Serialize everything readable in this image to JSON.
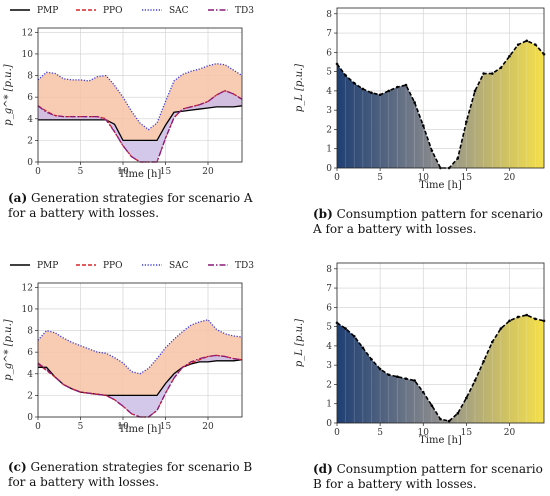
{
  "chart_data": [
    {
      "id": "a",
      "type": "line",
      "x": [
        0,
        1,
        2,
        3,
        4,
        5,
        6,
        7,
        8,
        9,
        10,
        11,
        12,
        13,
        14,
        15,
        16,
        17,
        18,
        19,
        20,
        21,
        22,
        23,
        24
      ],
      "xticks": [
        0,
        5,
        10,
        15,
        20
      ],
      "yticks": [
        0,
        2,
        4,
        6,
        8,
        10,
        12
      ],
      "xlim": [
        0,
        24
      ],
      "ylim": [
        0,
        12.4
      ],
      "xlabel": "Time [h]",
      "ylabel": "p_g^* [p.u.]",
      "legend": [
        "PMP",
        "PPO",
        "SAC",
        "TD3"
      ],
      "series": [
        {
          "name": "PMP",
          "color": "#000000",
          "dash": "solid",
          "values": [
            3.9,
            3.9,
            3.9,
            3.9,
            3.9,
            3.9,
            3.9,
            3.9,
            3.9,
            3.5,
            2.0,
            2.0,
            2.0,
            2.0,
            2.0,
            3.4,
            4.6,
            4.7,
            4.8,
            4.9,
            5.0,
            5.1,
            5.1,
            5.1,
            5.2
          ]
        },
        {
          "name": "PPO",
          "color": "#d62728",
          "dash": "dashed",
          "values": [
            5.2,
            4.7,
            4.3,
            4.2,
            4.2,
            4.2,
            4.2,
            4.2,
            4.0,
            2.8,
            1.5,
            0.5,
            0,
            0,
            0,
            2.2,
            4.1,
            4.9,
            5.1,
            5.3,
            5.6,
            6.2,
            6.6,
            6.3,
            5.8
          ]
        },
        {
          "name": "SAC",
          "color": "#3b3bd6",
          "dash": "dotted",
          "values": [
            7.6,
            8.3,
            8.2,
            7.7,
            7.6,
            7.6,
            7.5,
            7.9,
            8.0,
            7.1,
            6.0,
            4.7,
            3.6,
            3.0,
            3.6,
            5.6,
            7.5,
            8.1,
            8.4,
            8.6,
            8.9,
            9.1,
            9.0,
            8.5,
            8.0
          ]
        },
        {
          "name": "TD3",
          "color": "#8a1a7a",
          "dash": "dashdot",
          "values": [
            5.2,
            4.6,
            4.3,
            4.2,
            4.2,
            4.2,
            4.2,
            4.2,
            3.9,
            2.8,
            1.5,
            0.5,
            0,
            0,
            0,
            2.2,
            4.1,
            4.9,
            5.1,
            5.3,
            5.6,
            6.2,
            6.6,
            6.3,
            5.8
          ]
        }
      ],
      "caption_tag": "(a)",
      "caption_text": "Generation strategies for scenario A for a battery with losses."
    },
    {
      "id": "b",
      "type": "area",
      "x": [
        0,
        1,
        2,
        3,
        4,
        5,
        6,
        7,
        8,
        9,
        10,
        11,
        12,
        13,
        14,
        15,
        16,
        17,
        18,
        19,
        20,
        21,
        22,
        23,
        24
      ],
      "xticks": [
        0,
        5,
        10,
        15,
        20
      ],
      "yticks": [
        0,
        1,
        2,
        3,
        4,
        5,
        6,
        7,
        8
      ],
      "xlim": [
        0,
        24
      ],
      "ylim": [
        0,
        8.3
      ],
      "xlabel": "Time [h]",
      "ylabel": "p_L [p.u.]",
      "gradient": [
        "#1f3f73",
        "#8f8f8f",
        "#f5e04a"
      ],
      "series": [
        {
          "name": "",
          "color": "#000000",
          "dash": "dashed",
          "values": [
            5.4,
            4.8,
            4.4,
            4.1,
            3.9,
            3.8,
            4.0,
            4.2,
            4.3,
            3.4,
            2.2,
            0.9,
            0,
            0,
            0.5,
            2.4,
            4.0,
            4.9,
            4.9,
            5.2,
            5.8,
            6.4,
            6.6,
            6.4,
            5.9
          ]
        }
      ],
      "caption_tag": "(b)",
      "caption_text": "Consumption pattern for scenario A for a battery with losses."
    },
    {
      "id": "c",
      "type": "line",
      "x": [
        0,
        1,
        2,
        3,
        4,
        5,
        6,
        7,
        8,
        9,
        10,
        11,
        12,
        13,
        14,
        15,
        16,
        17,
        18,
        19,
        20,
        21,
        22,
        23,
        24
      ],
      "xticks": [
        0,
        5,
        10,
        15,
        20
      ],
      "yticks": [
        0,
        2,
        4,
        6,
        8,
        10,
        12
      ],
      "xlim": [
        0,
        24
      ],
      "ylim": [
        0,
        12.4
      ],
      "xlabel": "Time [h]",
      "ylabel": "p_g^* [p.u.]",
      "legend": [
        "PMP",
        "PPO",
        "SAC",
        "TD3"
      ],
      "series": [
        {
          "name": "PMP",
          "color": "#000000",
          "dash": "solid",
          "values": [
            4.6,
            4.6,
            3.7,
            3.0,
            2.6,
            2.3,
            2.2,
            2.1,
            2.0,
            2.0,
            2.0,
            2.0,
            2.0,
            2.0,
            2.0,
            3.1,
            4.0,
            4.6,
            4.9,
            5.1,
            5.1,
            5.2,
            5.2,
            5.2,
            5.3
          ]
        },
        {
          "name": "PPO",
          "color": "#d62728",
          "dash": "dashed",
          "values": [
            4.9,
            4.3,
            3.7,
            3.0,
            2.6,
            2.3,
            2.2,
            2.1,
            2.0,
            1.6,
            1.0,
            0.3,
            0,
            0,
            0.6,
            2.2,
            3.6,
            4.6,
            5.0,
            5.3,
            5.6,
            5.7,
            5.6,
            5.4,
            5.3
          ]
        },
        {
          "name": "SAC",
          "color": "#3b3bd6",
          "dash": "dotted",
          "values": [
            7.1,
            8.0,
            7.8,
            7.3,
            6.9,
            6.6,
            6.3,
            6.0,
            5.9,
            5.5,
            5.0,
            4.2,
            4.0,
            4.5,
            5.4,
            6.4,
            7.2,
            7.9,
            8.5,
            8.8,
            9.0,
            8.1,
            7.7,
            7.5,
            7.4
          ]
        },
        {
          "name": "TD3",
          "color": "#8a1a7a",
          "dash": "dashdot",
          "values": [
            5.0,
            4.4,
            3.7,
            3.0,
            2.6,
            2.3,
            2.2,
            2.1,
            2.0,
            1.6,
            1.0,
            0.3,
            0,
            0,
            0.6,
            2.2,
            3.6,
            4.6,
            5.1,
            5.4,
            5.6,
            5.7,
            5.6,
            5.4,
            5.3
          ]
        }
      ],
      "caption_tag": "(c)",
      "caption_text": "Generation strategies for scenario B for a battery with losses."
    },
    {
      "id": "d",
      "type": "area",
      "x": [
        0,
        1,
        2,
        3,
        4,
        5,
        6,
        7,
        8,
        9,
        10,
        11,
        12,
        13,
        14,
        15,
        16,
        17,
        18,
        19,
        20,
        21,
        22,
        23,
        24
      ],
      "xticks": [
        0,
        5,
        10,
        15,
        20
      ],
      "yticks": [
        0,
        1,
        2,
        3,
        4,
        5,
        6,
        7,
        8
      ],
      "xlim": [
        0,
        24
      ],
      "ylim": [
        0,
        8.3
      ],
      "xlabel": "Time [h]",
      "ylabel": "p_L [p.u.]",
      "gradient": [
        "#1f3f73",
        "#8f8f8f",
        "#f5e04a"
      ],
      "series": [
        {
          "name": "",
          "color": "#000000",
          "dash": "dashed",
          "values": [
            5.2,
            4.9,
            4.5,
            3.9,
            3.3,
            2.8,
            2.5,
            2.4,
            2.3,
            2.2,
            1.6,
            0.9,
            0.2,
            0.1,
            0.5,
            1.3,
            2.2,
            3.2,
            4.2,
            4.9,
            5.3,
            5.5,
            5.6,
            5.4,
            5.3
          ]
        }
      ],
      "caption_tag": "(d)",
      "caption_text": "Consumption pattern for scenario B for a battery with losses."
    }
  ]
}
